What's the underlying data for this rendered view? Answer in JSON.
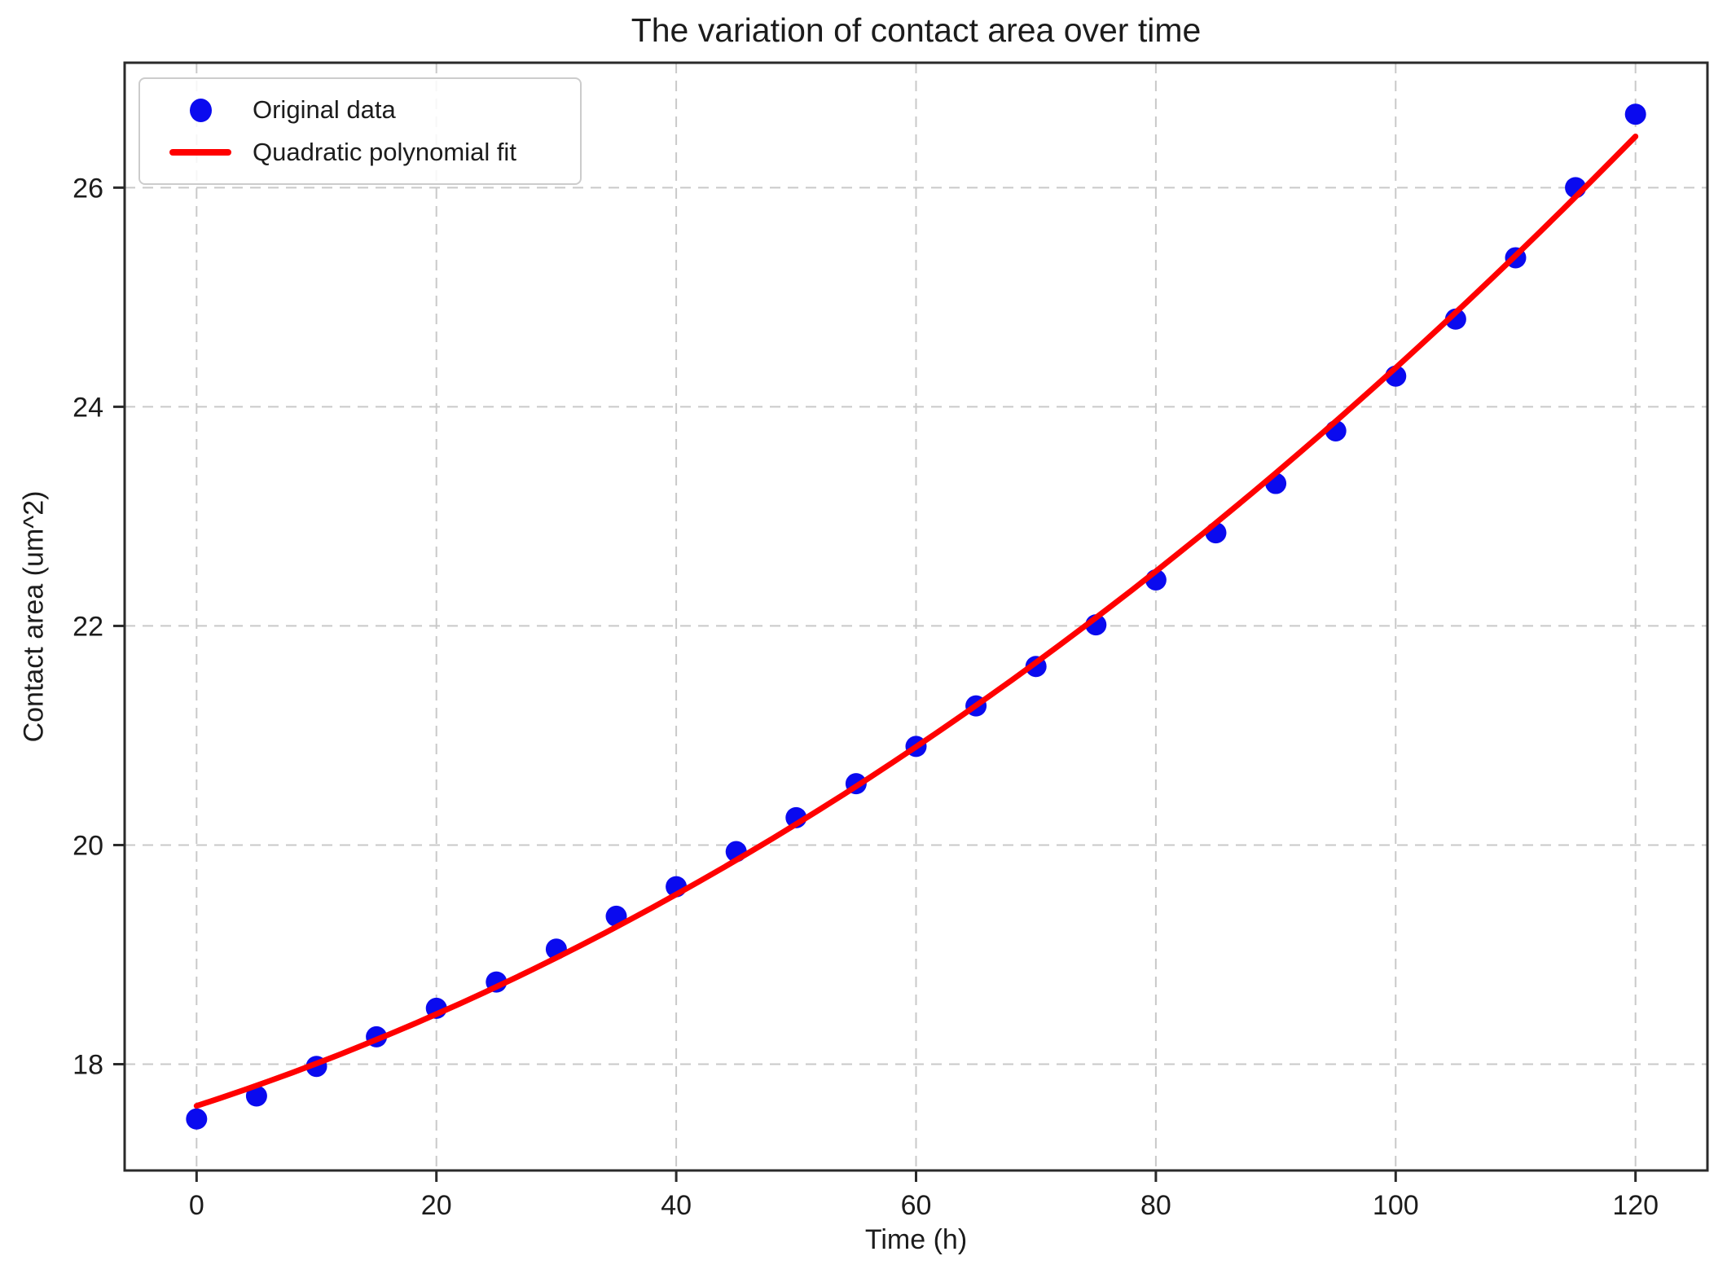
{
  "figure": {
    "background": "#ffffff"
  },
  "chart_data": {
    "type": "scatter",
    "title": "The variation of contact area over time",
    "xlabel": "Time (h)",
    "ylabel": "Contact area (um^2)",
    "xlim": [
      -6,
      126
    ],
    "ylim": [
      17.03,
      27.14
    ],
    "x_ticks": [
      0,
      20,
      40,
      60,
      80,
      100,
      120
    ],
    "y_ticks": [
      18,
      20,
      22,
      24,
      26
    ],
    "grid": true,
    "grid_style": "dashed",
    "legend_position": "upper left",
    "series": [
      {
        "name": "Original data",
        "kind": "scatter",
        "color": "#0a0aef",
        "x": [
          0,
          5,
          10,
          15,
          20,
          25,
          30,
          35,
          40,
          45,
          50,
          55,
          60,
          65,
          70,
          75,
          80,
          85,
          90,
          95,
          100,
          105,
          110,
          115,
          120
        ],
        "y": [
          17.5,
          17.71,
          17.98,
          18.25,
          18.51,
          18.75,
          19.05,
          19.35,
          19.62,
          19.94,
          20.25,
          20.56,
          20.9,
          21.27,
          21.63,
          22.01,
          22.42,
          22.85,
          23.3,
          23.78,
          24.28,
          24.8,
          25.36,
          26.0,
          26.67
        ]
      },
      {
        "name": "Quadratic polynomial fit",
        "kind": "line",
        "color": "#ff0000",
        "x_range": [
          0,
          120
        ],
        "fit_coefficients": {
          "a": 0.0003186,
          "b": 0.0355,
          "c": 17.6195
        }
      }
    ],
    "colors": {
      "grid": "#c9c9c9",
      "spine": "#2a2a2a",
      "tick": "#2a2a2a",
      "text": "#1c1c1c",
      "legend_border": "#cccccc",
      "background": "#ffffff"
    }
  }
}
